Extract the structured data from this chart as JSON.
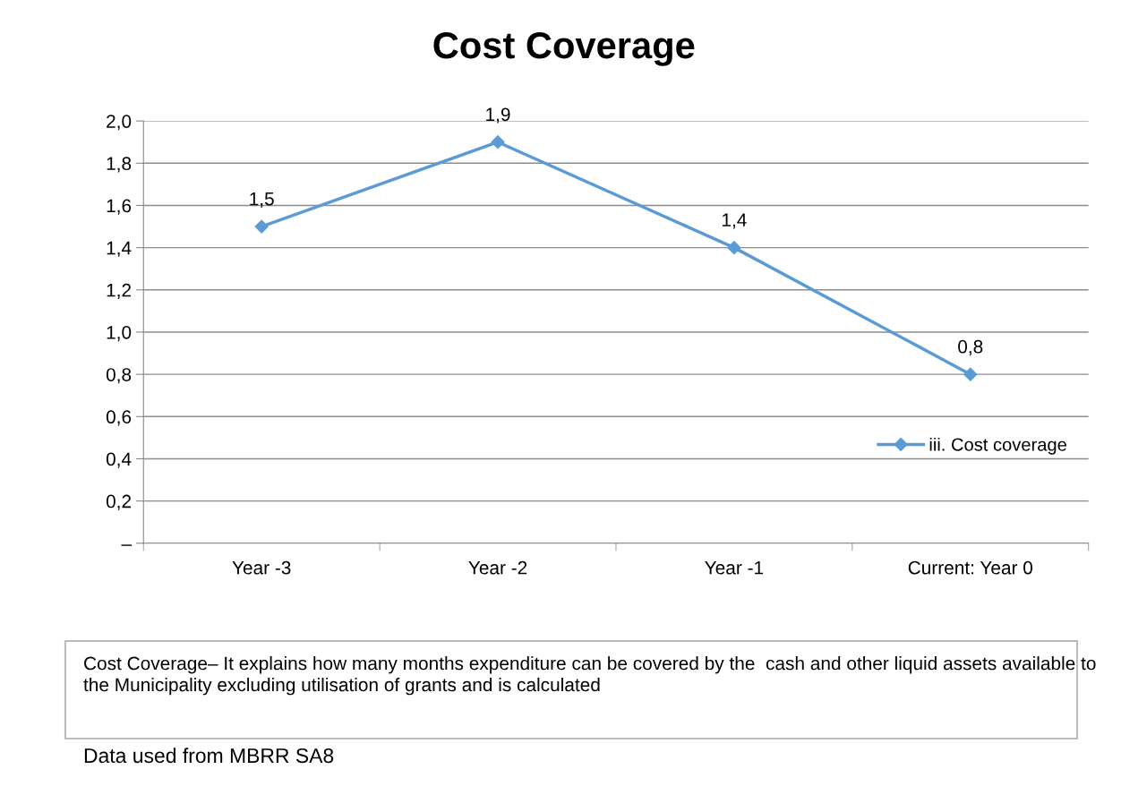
{
  "chart_data": {
    "type": "line",
    "title": "Cost Coverage",
    "categories": [
      "Year -3",
      "Year -2",
      "Year -1",
      "Current: Year 0"
    ],
    "series": [
      {
        "name": "iii. Cost coverage",
        "color": "#5b9bd5",
        "values": [
          1.5,
          1.9,
          1.4,
          0.8
        ],
        "value_labels": [
          "1,5",
          "1,9",
          "1,4",
          "0,8"
        ]
      }
    ],
    "ylim": [
      0,
      2.0
    ],
    "yticks": [
      {
        "value": 0,
        "label": "–"
      },
      {
        "value": 0.2,
        "label": "0,2"
      },
      {
        "value": 0.4,
        "label": "0,4"
      },
      {
        "value": 0.6,
        "label": "0,6"
      },
      {
        "value": 0.8,
        "label": "0,8"
      },
      {
        "value": 1.0,
        "label": "1,0"
      },
      {
        "value": 1.2,
        "label": "1,2"
      },
      {
        "value": 1.4,
        "label": "1,4"
      },
      {
        "value": 1.6,
        "label": "1,6"
      },
      {
        "value": 1.8,
        "label": "1,8"
      },
      {
        "value": 2.0,
        "label": "2,0"
      }
    ],
    "grid": "y",
    "legend": "right",
    "marker": "diamond",
    "line_style": "solid",
    "annotations": [
      "Cost Coverage– It explains how many months expenditure can be covered by the  cash and other liquid assets available to the Municipality excluding utilisation of grants and is calculated",
      "Data used from MBRR SA8"
    ]
  }
}
